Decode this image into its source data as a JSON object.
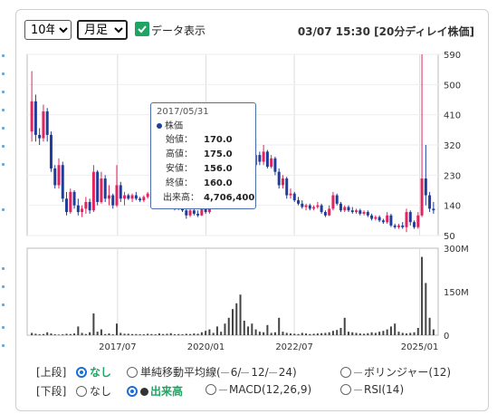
{
  "controls": {
    "period_select": "10年",
    "interval_select": "月足",
    "show_data_label": "データ表示",
    "timestamp": "03/07 15:30 [20分ディレイ株価]",
    "upper_label": "[上段]",
    "lower_label": "[下段]",
    "upper_options": [
      "なし",
      "単純移動平均線(",
      "6/",
      "12/",
      "24)",
      "ボリンジャー(12)"
    ],
    "lower_options": [
      "なし",
      "出来高",
      "MACD(12,26,9)",
      "RSI(14)"
    ]
  },
  "tooltip": {
    "date": "2017/05/31",
    "header": "株価",
    "open_label": "始値：",
    "open": "170.0",
    "high_label": "高値：",
    "high": "175.0",
    "low_label": "安値：",
    "low": "156.0",
    "close_label": "終値：",
    "close": "160.0",
    "volume_label": "出来高：",
    "volume": "4,706,400"
  },
  "colors": {
    "up": "#e0245e",
    "down": "#1f3d99",
    "volume": "#444444",
    "accent": "#1fa463"
  },
  "chart_data": [
    {
      "type": "candlestick",
      "title": "",
      "y_ticks": [
        "590",
        "500",
        "410",
        "320",
        "230",
        "140",
        "50"
      ],
      "ylim": [
        50,
        590
      ],
      "x_ticks": [
        "2017/07",
        "2020/01",
        "2022/07",
        "2025/01"
      ],
      "series": [
        {
          "o": 360,
          "h": 540,
          "l": 330,
          "c": 450
        },
        {
          "o": 450,
          "h": 470,
          "l": 330,
          "c": 350
        },
        {
          "o": 350,
          "h": 370,
          "l": 320,
          "c": 340
        },
        {
          "o": 340,
          "h": 440,
          "l": 330,
          "c": 420
        },
        {
          "o": 420,
          "h": 430,
          "l": 330,
          "c": 350
        },
        {
          "o": 350,
          "h": 360,
          "l": 240,
          "c": 250
        },
        {
          "o": 250,
          "h": 260,
          "l": 190,
          "c": 200
        },
        {
          "o": 200,
          "h": 280,
          "l": 190,
          "c": 260
        },
        {
          "o": 260,
          "h": 270,
          "l": 150,
          "c": 160
        },
        {
          "o": 160,
          "h": 180,
          "l": 110,
          "c": 120
        },
        {
          "o": 120,
          "h": 190,
          "l": 115,
          "c": 180
        },
        {
          "o": 180,
          "h": 185,
          "l": 130,
          "c": 140
        },
        {
          "o": 140,
          "h": 160,
          "l": 110,
          "c": 120
        },
        {
          "o": 120,
          "h": 140,
          "l": 105,
          "c": 130
        },
        {
          "o": 130,
          "h": 165,
          "l": 115,
          "c": 150
        },
        {
          "o": 150,
          "h": 160,
          "l": 115,
          "c": 125
        },
        {
          "o": 125,
          "h": 260,
          "l": 120,
          "c": 240
        },
        {
          "o": 240,
          "h": 245,
          "l": 140,
          "c": 150
        },
        {
          "o": 150,
          "h": 240,
          "l": 145,
          "c": 220
        },
        {
          "o": 220,
          "h": 230,
          "l": 150,
          "c": 160
        },
        {
          "o": 160,
          "h": 200,
          "l": 140,
          "c": 170
        },
        {
          "o": 170,
          "h": 175,
          "l": 130,
          "c": 140
        },
        {
          "o": 140,
          "h": 260,
          "l": 135,
          "c": 200
        },
        {
          "o": 200,
          "h": 210,
          "l": 150,
          "c": 160
        },
        {
          "o": 160,
          "h": 180,
          "l": 140,
          "c": 170
        },
        {
          "o": 170,
          "h": 175,
          "l": 156,
          "c": 160
        },
        {
          "o": 160,
          "h": 175,
          "l": 150,
          "c": 170
        },
        {
          "o": 170,
          "h": 180,
          "l": 155,
          "c": 160
        },
        {
          "o": 160,
          "h": 165,
          "l": 150,
          "c": 155
        },
        {
          "o": 155,
          "h": 170,
          "l": 150,
          "c": 165
        },
        {
          "o": 165,
          "h": 180,
          "l": 160,
          "c": 175
        },
        {
          "o": 175,
          "h": 185,
          "l": 150,
          "c": 155
        },
        {
          "o": 155,
          "h": 160,
          "l": 140,
          "c": 150
        },
        {
          "o": 150,
          "h": 175,
          "l": 145,
          "c": 170
        },
        {
          "o": 170,
          "h": 175,
          "l": 140,
          "c": 145
        },
        {
          "o": 145,
          "h": 165,
          "l": 140,
          "c": 160
        },
        {
          "o": 160,
          "h": 170,
          "l": 140,
          "c": 145
        },
        {
          "o": 145,
          "h": 150,
          "l": 125,
          "c": 130
        },
        {
          "o": 130,
          "h": 150,
          "l": 125,
          "c": 145
        },
        {
          "o": 145,
          "h": 150,
          "l": 120,
          "c": 125
        },
        {
          "o": 125,
          "h": 130,
          "l": 100,
          "c": 110
        },
        {
          "o": 110,
          "h": 130,
          "l": 105,
          "c": 125
        },
        {
          "o": 125,
          "h": 140,
          "l": 110,
          "c": 115
        },
        {
          "o": 115,
          "h": 125,
          "l": 105,
          "c": 110
        },
        {
          "o": 110,
          "h": 150,
          "l": 108,
          "c": 140
        },
        {
          "o": 140,
          "h": 145,
          "l": 115,
          "c": 120
        },
        {
          "o": 120,
          "h": 165,
          "l": 115,
          "c": 160
        },
        {
          "o": 160,
          "h": 170,
          "l": 130,
          "c": 135
        },
        {
          "o": 135,
          "h": 175,
          "l": 130,
          "c": 165
        },
        {
          "o": 165,
          "h": 170,
          "l": 135,
          "c": 140
        },
        {
          "o": 140,
          "h": 200,
          "l": 135,
          "c": 190
        },
        {
          "o": 190,
          "h": 200,
          "l": 130,
          "c": 140
        },
        {
          "o": 140,
          "h": 240,
          "l": 135,
          "c": 230
        },
        {
          "o": 230,
          "h": 235,
          "l": 170,
          "c": 180
        },
        {
          "o": 180,
          "h": 330,
          "l": 175,
          "c": 320
        },
        {
          "o": 320,
          "h": 340,
          "l": 260,
          "c": 270
        },
        {
          "o": 270,
          "h": 320,
          "l": 240,
          "c": 300
        },
        {
          "o": 300,
          "h": 310,
          "l": 250,
          "c": 260
        },
        {
          "o": 260,
          "h": 340,
          "l": 255,
          "c": 290
        },
        {
          "o": 290,
          "h": 300,
          "l": 260,
          "c": 270
        },
        {
          "o": 270,
          "h": 320,
          "l": 260,
          "c": 300
        },
        {
          "o": 300,
          "h": 305,
          "l": 250,
          "c": 255
        },
        {
          "o": 255,
          "h": 290,
          "l": 250,
          "c": 280
        },
        {
          "o": 280,
          "h": 285,
          "l": 230,
          "c": 240
        },
        {
          "o": 240,
          "h": 250,
          "l": 190,
          "c": 200
        },
        {
          "o": 200,
          "h": 230,
          "l": 190,
          "c": 220
        },
        {
          "o": 220,
          "h": 225,
          "l": 160,
          "c": 170
        },
        {
          "o": 170,
          "h": 190,
          "l": 160,
          "c": 175
        },
        {
          "o": 175,
          "h": 180,
          "l": 150,
          "c": 155
        },
        {
          "o": 155,
          "h": 165,
          "l": 140,
          "c": 145
        },
        {
          "o": 145,
          "h": 155,
          "l": 130,
          "c": 135
        },
        {
          "o": 135,
          "h": 145,
          "l": 125,
          "c": 140
        },
        {
          "o": 140,
          "h": 145,
          "l": 125,
          "c": 130
        },
        {
          "o": 130,
          "h": 140,
          "l": 125,
          "c": 135
        },
        {
          "o": 135,
          "h": 150,
          "l": 130,
          "c": 140
        },
        {
          "o": 140,
          "h": 145,
          "l": 115,
          "c": 120
        },
        {
          "o": 120,
          "h": 125,
          "l": 105,
          "c": 110
        },
        {
          "o": 110,
          "h": 140,
          "l": 108,
          "c": 130
        },
        {
          "o": 130,
          "h": 180,
          "l": 125,
          "c": 170
        },
        {
          "o": 170,
          "h": 175,
          "l": 140,
          "c": 145
        },
        {
          "o": 145,
          "h": 150,
          "l": 120,
          "c": 125
        },
        {
          "o": 125,
          "h": 140,
          "l": 120,
          "c": 135
        },
        {
          "o": 135,
          "h": 140,
          "l": 120,
          "c": 125
        },
        {
          "o": 125,
          "h": 135,
          "l": 115,
          "c": 120
        },
        {
          "o": 120,
          "h": 130,
          "l": 115,
          "c": 125
        },
        {
          "o": 125,
          "h": 130,
          "l": 110,
          "c": 115
        },
        {
          "o": 115,
          "h": 125,
          "l": 110,
          "c": 120
        },
        {
          "o": 120,
          "h": 125,
          "l": 105,
          "c": 110
        },
        {
          "o": 110,
          "h": 115,
          "l": 95,
          "c": 100
        },
        {
          "o": 100,
          "h": 110,
          "l": 95,
          "c": 105
        },
        {
          "o": 105,
          "h": 110,
          "l": 90,
          "c": 95
        },
        {
          "o": 95,
          "h": 100,
          "l": 85,
          "c": 90
        },
        {
          "o": 90,
          "h": 120,
          "l": 85,
          "c": 110
        },
        {
          "o": 110,
          "h": 115,
          "l": 75,
          "c": 80
        },
        {
          "o": 80,
          "h": 85,
          "l": 70,
          "c": 75
        },
        {
          "o": 75,
          "h": 85,
          "l": 70,
          "c": 80
        },
        {
          "o": 80,
          "h": 90,
          "l": 70,
          "c": 75
        },
        {
          "o": 75,
          "h": 130,
          "l": 60,
          "c": 120
        },
        {
          "o": 120,
          "h": 125,
          "l": 80,
          "c": 90
        },
        {
          "o": 90,
          "h": 95,
          "l": 70,
          "c": 75
        },
        {
          "o": 75,
          "h": 120,
          "l": 70,
          "c": 110
        },
        {
          "o": 110,
          "h": 590,
          "l": 105,
          "c": 220
        },
        {
          "o": 220,
          "h": 320,
          "l": 140,
          "c": 170
        },
        {
          "o": 170,
          "h": 180,
          "l": 120,
          "c": 130
        },
        {
          "o": 130,
          "h": 150,
          "l": 115,
          "c": 125
        }
      ]
    },
    {
      "type": "bar",
      "title": "",
      "y_ticks": [
        "300M",
        "150M",
        "0"
      ],
      "ylim": [
        0,
        300
      ],
      "x_ticks": [
        "2017/07",
        "2020/01",
        "2022/07",
        "2025/01"
      ],
      "values": [
        8,
        5,
        3,
        4,
        10,
        6,
        3,
        2,
        3,
        5,
        4,
        6,
        30,
        8,
        4,
        10,
        75,
        12,
        20,
        4,
        6,
        3,
        40,
        8,
        5,
        5,
        4,
        4,
        3,
        3,
        5,
        4,
        3,
        6,
        4,
        5,
        7,
        3,
        4,
        3,
        5,
        4,
        6,
        5,
        10,
        15,
        20,
        8,
        30,
        12,
        40,
        60,
        90,
        110,
        140,
        50,
        30,
        40,
        20,
        12,
        10,
        35,
        8,
        10,
        60,
        12,
        8,
        6,
        5,
        4,
        8,
        6,
        4,
        5,
        6,
        7,
        8,
        10,
        15,
        18,
        25,
        60,
        12,
        10,
        8,
        6,
        5,
        7,
        10,
        8,
        12,
        15,
        20,
        30,
        40,
        12,
        8,
        6,
        8,
        10,
        25,
        270,
        180,
        60,
        20
      ]
    }
  ]
}
